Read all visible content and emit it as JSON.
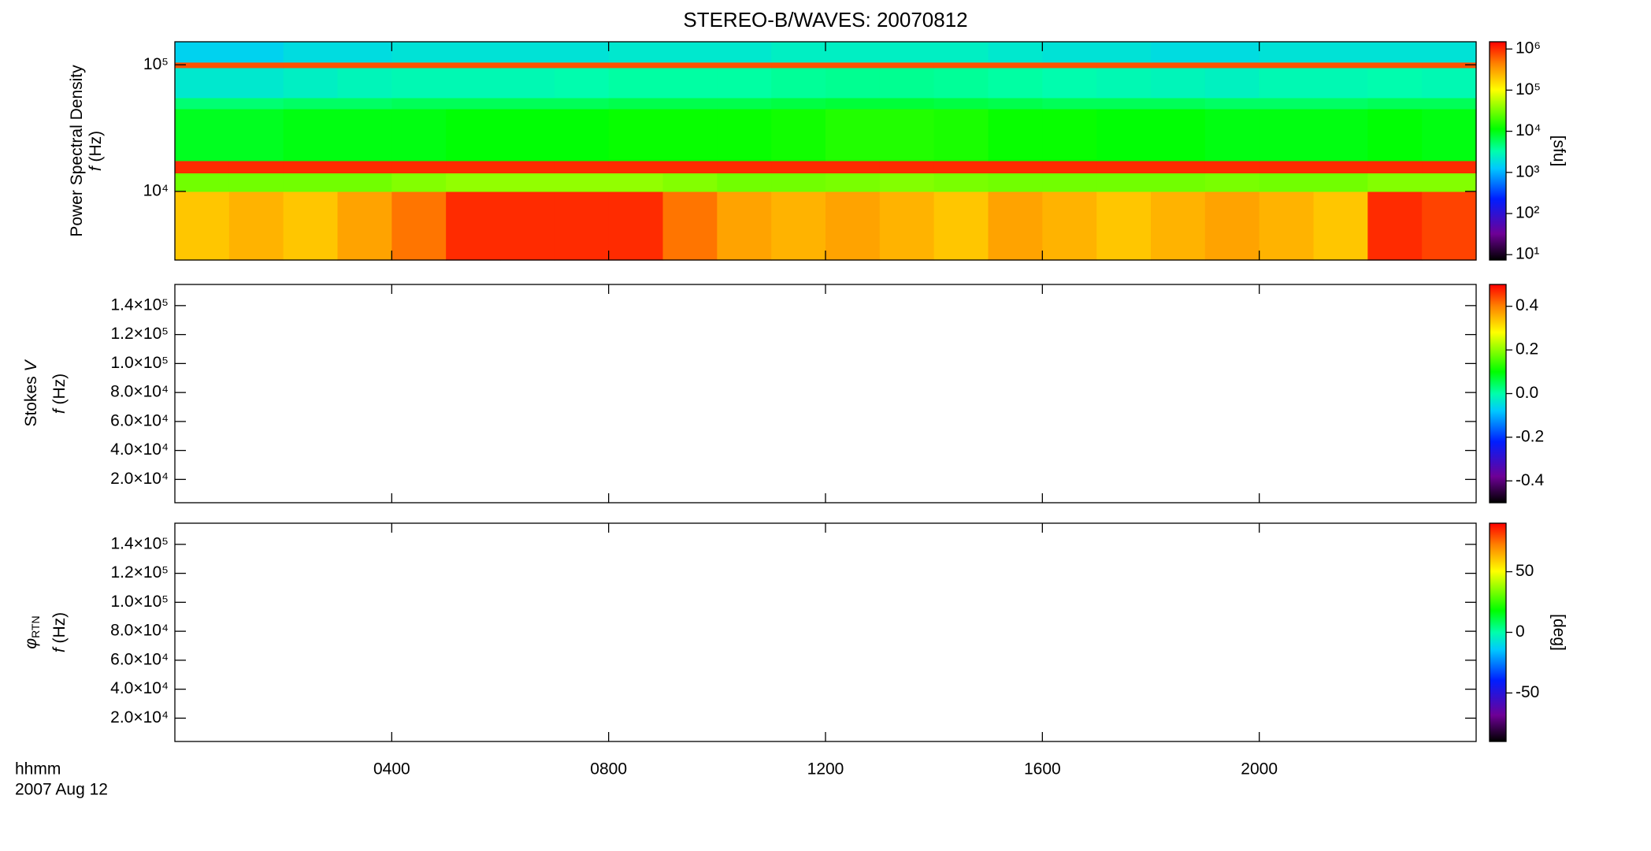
{
  "figure": {
    "title": "STEREO-B/WAVES: 20070812",
    "x_label": "hhmm",
    "date_label": "2007 Aug 12",
    "xlim": [
      0,
      1440
    ],
    "xticks": [
      {
        "value": 240,
        "label": "0400"
      },
      {
        "value": 480,
        "label": "0800"
      },
      {
        "value": 720,
        "label": "1200"
      },
      {
        "value": 960,
        "label": "1600"
      },
      {
        "value": 1200,
        "label": "2000"
      }
    ]
  },
  "chart_data": [
    {
      "type": "spectrogram",
      "ylabel": "Power Spectral Density",
      "y_var": "f",
      "y_unit": "(Hz)",
      "ylog": true,
      "ylim": [
        2870,
        152000
      ],
      "yticks": [
        {
          "value": 10000,
          "label": "10⁴"
        },
        {
          "value": 100000,
          "label": "10⁵"
        }
      ],
      "x_edges": [
        0,
        60,
        120,
        180,
        240,
        300,
        360,
        420,
        480,
        540,
        600,
        660,
        720,
        780,
        840,
        900,
        960,
        1020,
        1080,
        1140,
        1200,
        1260,
        1320,
        1380,
        1440
      ],
      "f_edges": [
        2870,
        10000,
        14000,
        17500,
        45000,
        55000,
        95000,
        105000,
        152000
      ],
      "z": [
        [
          200000,
          250000,
          200000,
          300000,
          500000,
          1000000,
          1000000,
          1000000,
          1000000,
          500000,
          300000,
          250000,
          300000,
          250000,
          200000,
          300000,
          250000,
          200000,
          250000,
          300000,
          250000,
          200000,
          1000000,
          800000
        ],
        [
          30000,
          30000,
          30000,
          30000,
          35000,
          40000,
          40000,
          40000,
          40000,
          35000,
          30000,
          30000,
          32000,
          35000,
          32000,
          30000,
          30000,
          30000,
          30000,
          32000,
          30000,
          30000,
          35000,
          35000
        ],
        [
          1000000,
          1000000,
          1000000,
          1000000,
          1000000,
          1000000,
          1000000,
          1000000,
          1000000,
          1000000,
          1000000,
          1000000,
          1000000,
          1000000,
          1000000,
          1000000,
          1000000,
          1000000,
          1000000,
          1000000,
          1000000,
          1000000,
          1000000,
          1000000
        ],
        [
          9000,
          9000,
          10000,
          10000,
          10000,
          11000,
          11000,
          11000,
          12000,
          12000,
          12000,
          13000,
          15000,
          15000,
          14000,
          12000,
          12000,
          11000,
          11000,
          10000,
          10000,
          10000,
          11000,
          10000
        ],
        [
          5000,
          5000,
          5500,
          5500,
          6000,
          6000,
          6000,
          6000,
          6500,
          6500,
          6500,
          7000,
          7500,
          7500,
          7000,
          6500,
          6000,
          6000,
          6000,
          5500,
          5500,
          5500,
          6000,
          6000
        ],
        [
          2200,
          2200,
          2500,
          2800,
          3000,
          3000,
          3000,
          3200,
          3500,
          3500,
          3500,
          3800,
          4000,
          4000,
          3800,
          3500,
          3200,
          3000,
          2800,
          2600,
          3000,
          3000,
          3200,
          3000
        ],
        [
          700000,
          700000,
          700000,
          700000,
          700000,
          700000,
          700000,
          700000,
          700000,
          700000,
          700000,
          700000,
          700000,
          700000,
          700000,
          700000,
          700000,
          700000,
          700000,
          700000,
          700000,
          700000,
          700000,
          700000
        ],
        [
          1500,
          1500,
          1800,
          1800,
          2000,
          2000,
          2000,
          2000,
          2200,
          2200,
          2200,
          2500,
          2500,
          2500,
          2500,
          2200,
          2000,
          2000,
          1800,
          1800,
          2000,
          2000,
          2000,
          2000
        ]
      ],
      "clog": true,
      "clim": [
        7.4,
        1500000
      ],
      "cticks": [
        {
          "value": 10,
          "label": "10¹"
        },
        {
          "value": 100,
          "label": "10²"
        },
        {
          "value": 1000,
          "label": "10³"
        },
        {
          "value": 10000,
          "label": "10⁴"
        },
        {
          "value": 100000,
          "label": "10⁵"
        },
        {
          "value": 1000000,
          "label": "10⁶"
        }
      ],
      "clabel": "[sfu]"
    },
    {
      "type": "spectrogram",
      "ylabel": "Stokes",
      "ylabel_var": "V",
      "y_var": "f",
      "y_unit": "(Hz)",
      "ylog": false,
      "ylim": [
        3900,
        154600
      ],
      "yticks": [
        {
          "value": 20000,
          "label": "2.0×10⁴"
        },
        {
          "value": 40000,
          "label": "4.0×10⁴"
        },
        {
          "value": 60000,
          "label": "6.0×10⁴"
        },
        {
          "value": 80000,
          "label": "8.0×10⁴"
        },
        {
          "value": 100000,
          "label": "1.0×10⁵"
        },
        {
          "value": 120000,
          "label": "1.2×10⁵"
        },
        {
          "value": 140000,
          "label": "1.4×10⁵"
        }
      ],
      "clog": false,
      "clim": [
        -0.5,
        0.5
      ],
      "cticks": [
        {
          "value": -0.4,
          "label": "-0.4"
        },
        {
          "value": -0.2,
          "label": "-0.2"
        },
        {
          "value": 0,
          "label": "0.0"
        },
        {
          "value": 0.2,
          "label": "0.2"
        },
        {
          "value": 0.4,
          "label": "0.4"
        }
      ]
    },
    {
      "type": "spectrogram",
      "ylabel": "φ",
      "ylabel_sub": "RTN",
      "y_var": "f",
      "y_unit": "(Hz)",
      "ylog": false,
      "ylim": [
        3900,
        154600
      ],
      "yticks": [
        {
          "value": 20000,
          "label": "2.0×10⁴"
        },
        {
          "value": 40000,
          "label": "4.0×10⁴"
        },
        {
          "value": 60000,
          "label": "6.0×10⁴"
        },
        {
          "value": 80000,
          "label": "8.0×10⁴"
        },
        {
          "value": 100000,
          "label": "1.0×10⁵"
        },
        {
          "value": 120000,
          "label": "1.2×10⁵"
        },
        {
          "value": 140000,
          "label": "1.4×10⁵"
        }
      ],
      "clog": false,
      "clim": [
        -90,
        90
      ],
      "cticks": [
        {
          "value": -50,
          "label": "-50"
        },
        {
          "value": 0,
          "label": "0"
        },
        {
          "value": 50,
          "label": "50"
        }
      ],
      "clabel": "[deg]"
    }
  ]
}
